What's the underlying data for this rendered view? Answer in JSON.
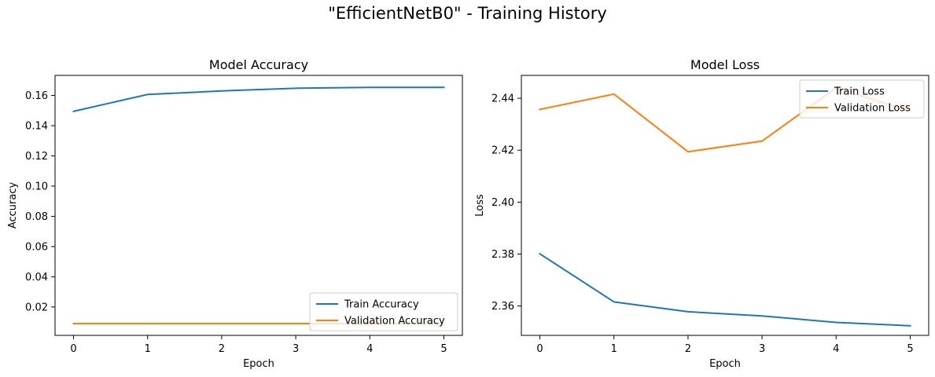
{
  "figure": {
    "suptitle": "\"EfficientNetB0\" - Training History"
  },
  "chart_data": [
    {
      "type": "line",
      "title": "Model Accuracy",
      "xlabel": "Epoch",
      "ylabel": "Accuracy",
      "x": [
        0,
        1,
        2,
        3,
        4,
        5
      ],
      "xticks": [
        "0",
        "1",
        "2",
        "3",
        "4",
        "5"
      ],
      "yticks": [
        "0.02",
        "0.04",
        "0.06",
        "0.08",
        "0.10",
        "0.12",
        "0.14",
        "0.16"
      ],
      "ylim": [
        0.0012,
        0.1733
      ],
      "xlim": [
        -0.25,
        5.25
      ],
      "grid": false,
      "legend_position": "lower-right",
      "series": [
        {
          "name": "Train Accuracy",
          "color": "#1f77b4",
          "values": [
            0.1495,
            0.1607,
            0.163,
            0.1648,
            0.1654,
            0.1654
          ]
        },
        {
          "name": "Validation Accuracy",
          "color": "#ff7f0e",
          "values": [
            0.009,
            0.009,
            0.009,
            0.009,
            0.009,
            0.009
          ]
        }
      ]
    },
    {
      "type": "line",
      "title": "Model Loss",
      "xlabel": "Epoch",
      "ylabel": "Loss",
      "x": [
        0,
        1,
        2,
        3,
        4,
        5
      ],
      "xticks": [
        "0",
        "1",
        "2",
        "3",
        "4",
        "5"
      ],
      "yticks": [
        "2.36",
        "2.38",
        "2.40",
        "2.42",
        "2.44"
      ],
      "ylim": [
        2.3487,
        2.4488
      ],
      "xlim": [
        -0.25,
        5.25
      ],
      "grid": false,
      "legend_position": "top-right",
      "series": [
        {
          "name": "Train Loss",
          "color": "#1f77b4",
          "values": [
            2.3801,
            2.3616,
            2.3578,
            2.3562,
            2.3537,
            2.3524
          ]
        },
        {
          "name": "Validation Loss",
          "color": "#ff7f0e",
          "values": [
            2.4357,
            2.4416,
            2.4194,
            2.4235,
            2.444,
            2.435
          ]
        }
      ]
    }
  ]
}
